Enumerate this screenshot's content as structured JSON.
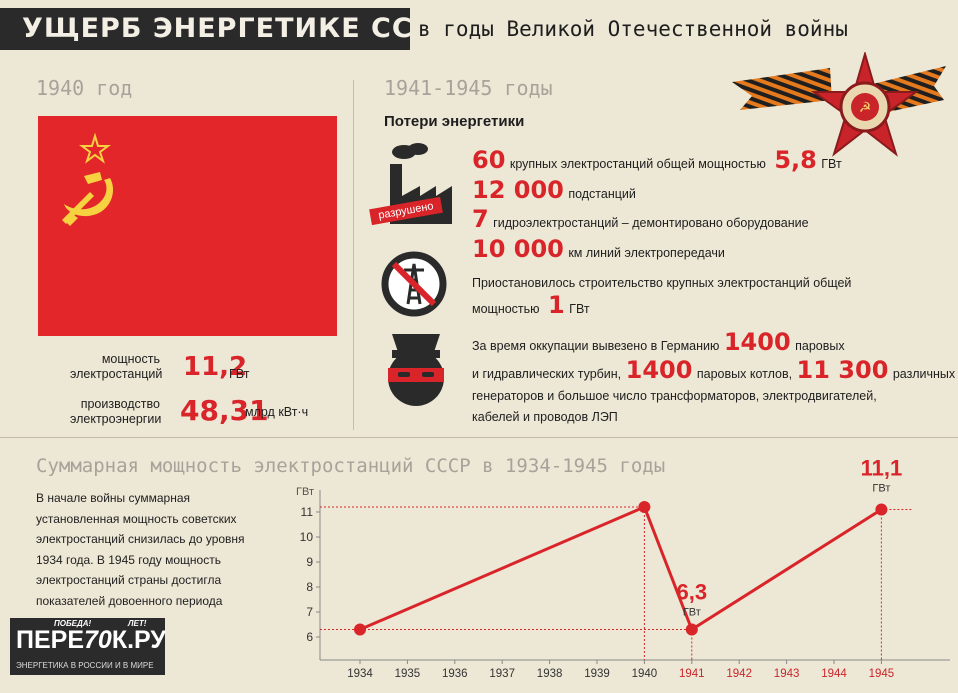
{
  "header": {
    "title_bold": "УЩЕРБ ЭНЕРГЕТИКЕ СССР",
    "title_rest": "в годы Великой Отечественной войны"
  },
  "left": {
    "year": "1940 год",
    "capacity": {
      "label_1": "мощность",
      "label_2": "электростанций",
      "value": "11,2",
      "unit": "ГВт"
    },
    "production": {
      "label_1": "производство",
      "label_2": "электроэнергии",
      "value": "48,31",
      "unit": "млрд кВт·ч"
    }
  },
  "right": {
    "period": "1941-1945 годы",
    "subtitle": "Потери энергетики",
    "stamp": "разрушено",
    "rows": [
      {
        "n1": "60",
        "t1": "крупных электростанций общей мощностью",
        "n2": "5,8",
        "t2": "ГВт"
      },
      {
        "n1": "12 000",
        "t1": "подстанций"
      },
      {
        "n1": "7",
        "t1": "гидроэлектростанций – демонтировано оборудование"
      },
      {
        "n1": "10 000",
        "t1": "км линий электропередачи"
      }
    ],
    "construction": {
      "text_1": "Приостановилось строительство крупных электростанций общей",
      "text_2": "мощностью",
      "n": "1",
      "unit": "ГВт"
    },
    "occupation": {
      "t1": "За время оккупации вывезено в Германию",
      "n1": "1400",
      "t2": "паровых",
      "t3": "и гидравлических турбин,",
      "n2": "1400",
      "t4": "паровых котлов,",
      "n3": "11 300",
      "t5": "различных",
      "t6": "генераторов и большое число трансформаторов, электродвигателей,",
      "t7": "кабелей и проводов ЛЭП"
    }
  },
  "bottom": {
    "title": "Суммарная мощность электростанций СССР в 1934-1945 годы",
    "paragraph": [
      "В начале войны суммарная",
      "установленная мощность советских",
      "электростанций снизилась до уровня",
      "1934 года. В 1945 году мощность",
      "электростанций страны достигла",
      "показателей довоенного периода"
    ]
  },
  "logo": {
    "top_1": "ПОБЕДА!",
    "top_2": "ЛЕТ!",
    "main_1": "ПЕРЕ",
    "main_70": "70",
    "main_2": "К.РУ",
    "sub": "ЭНЕРГЕТИКА В РОССИИ И В МИРЕ"
  },
  "colors": {
    "red": "#d9252a",
    "background": "#ede7d6",
    "dark": "#2a2a2a",
    "muted": "#a8a29a",
    "orange": "#e4791e"
  },
  "icons": [
    "hammer-sickle-icon",
    "star-icon",
    "factory-icon",
    "no-tower-icon",
    "robber-icon",
    "order-star-icon",
    "st-george-ribbon"
  ],
  "chart_data": {
    "type": "line",
    "categories": [
      "1934",
      "1935",
      "1936",
      "1937",
      "1938",
      "1939",
      "1940",
      "1941",
      "1942",
      "1943",
      "1944",
      "1945"
    ],
    "war_years": [
      "1941",
      "1942",
      "1943",
      "1944",
      "1945"
    ],
    "series": [
      {
        "points": [
          {
            "x": "1934",
            "y": 6.3
          },
          {
            "x": "1940",
            "y": 11.2
          },
          {
            "x": "1941",
            "y": 6.3
          },
          {
            "x": "1945",
            "y": 11.1
          }
        ]
      }
    ],
    "ylabel": "ГВт",
    "yticks": [
      6,
      7,
      8,
      9,
      10,
      11
    ],
    "ylim": [
      5.5,
      11.8
    ],
    "annotations": [
      {
        "x": "1941",
        "value": "6,3",
        "unit": "ГВт"
      },
      {
        "x": "1945",
        "value": "11,1",
        "unit": "ГВт"
      }
    ],
    "grid": false
  }
}
